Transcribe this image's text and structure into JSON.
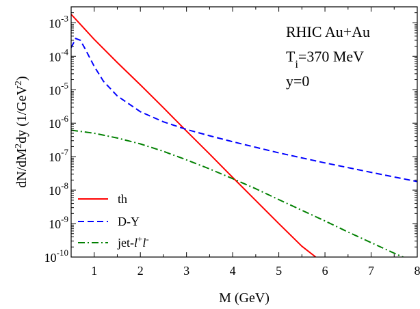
{
  "chart_data": {
    "type": "line",
    "xlabel": "M (GeV)",
    "ylabel_main": "dN/dM",
    "ylabel_sup1": "2",
    "ylabel_mid": "dy (1/GeV",
    "ylabel_sup2": "2",
    "ylabel_end": ")",
    "xlim": [
      0.5,
      8
    ],
    "ylim": [
      1e-10,
      0.003
    ],
    "yscale": "log",
    "x_ticks": [
      1,
      2,
      3,
      4,
      5,
      6,
      7,
      8
    ],
    "x_tick_labels": [
      "1",
      "2",
      "3",
      "4",
      "5",
      "6",
      "7",
      "8"
    ],
    "y_ticks": [
      {
        "value": 0.001,
        "base": "10",
        "exp": "-3"
      },
      {
        "value": 0.0001,
        "base": "10",
        "exp": "-4"
      },
      {
        "value": 1e-05,
        "base": "10",
        "exp": "-5"
      },
      {
        "value": 1e-06,
        "base": "10",
        "exp": "-6"
      },
      {
        "value": 1e-07,
        "base": "10",
        "exp": "-7"
      },
      {
        "value": 1e-08,
        "base": "10",
        "exp": "-8"
      },
      {
        "value": 1e-09,
        "base": "10",
        "exp": "-9"
      },
      {
        "value": 1e-10,
        "base": "10",
        "exp": "-10"
      }
    ],
    "annotations": {
      "line1": "RHIC Au+Au",
      "line2_prefix": "T",
      "line2_sub": "i",
      "line2_suffix": "=370 MeV",
      "line3": "y=0"
    },
    "legend_position": "lower-left",
    "series": [
      {
        "name": "th",
        "color": "#ff0000",
        "dash": "solid",
        "x": [
          0.5,
          1.0,
          1.5,
          2.0,
          2.5,
          3.0,
          3.5,
          4.0,
          4.5,
          5.0,
          5.5,
          5.8
        ],
        "y": [
          0.0018,
          0.00032,
          6.5e-05,
          1.4e-05,
          2.9e-06,
          5.8e-07,
          1.2e-07,
          2.4e-08,
          4.9e-09,
          1e-09,
          2.1e-10,
          1e-10
        ]
      },
      {
        "name": "D-Y",
        "color": "#0000ff",
        "dash": "dashed",
        "x": [
          0.5,
          0.6,
          0.7,
          0.8,
          1.0,
          1.2,
          1.5,
          2.0,
          2.5,
          3.0,
          3.5,
          4.0,
          5.0,
          6.0,
          7.0,
          8.0
        ],
        "y": [
          0.00018,
          0.00034,
          0.0003,
          0.00017,
          5e-05,
          1.8e-05,
          6.5e-06,
          2.2e-06,
          1.1e-06,
          6.5e-07,
          4.2e-07,
          2.8e-07,
          1.3e-07,
          6.5e-08,
          3.4e-08,
          1.8e-08
        ]
      },
      {
        "name": "jet-l+l-",
        "legend_prefix": "jet-",
        "color": "#008000",
        "dash": "dashdot",
        "x": [
          0.5,
          1.0,
          1.5,
          2.0,
          2.5,
          3.0,
          3.5,
          4.0,
          4.5,
          5.0,
          5.5,
          6.0,
          6.5,
          7.0,
          7.5,
          8.0
        ],
        "y": [
          6.2e-07,
          5e-07,
          3.6e-07,
          2.4e-07,
          1.45e-07,
          8e-08,
          4.3e-08,
          2.2e-08,
          1.1e-08,
          5.2e-09,
          2.5e-09,
          1.2e-09,
          5.6e-10,
          2.7e-10,
          1.3e-10,
          6.5e-11
        ]
      }
    ]
  }
}
